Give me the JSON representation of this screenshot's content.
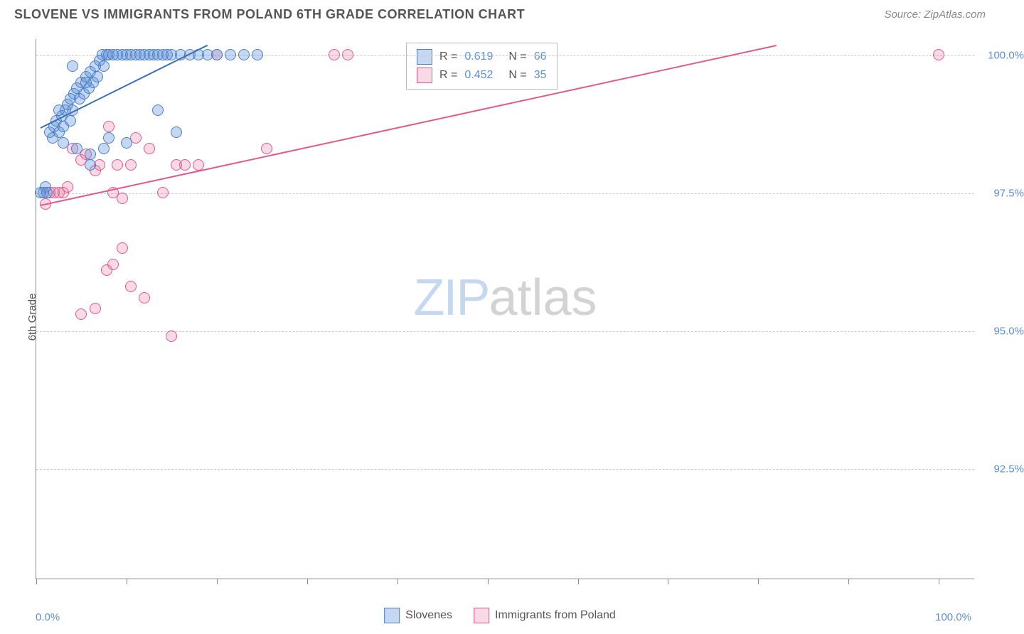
{
  "header": {
    "title": "SLOVENE VS IMMIGRANTS FROM POLAND 6TH GRADE CORRELATION CHART",
    "source": "Source: ZipAtlas.com"
  },
  "yaxis": {
    "title": "6th Grade",
    "min": 90.5,
    "max": 100.3,
    "ticks": [
      {
        "value": 100.0,
        "label": "100.0%"
      },
      {
        "value": 97.5,
        "label": "97.5%"
      },
      {
        "value": 95.0,
        "label": "95.0%"
      },
      {
        "value": 92.5,
        "label": "92.5%"
      }
    ]
  },
  "xaxis": {
    "min": 0.0,
    "max": 104.0,
    "label_left": "0.0%",
    "label_right": "100.0%",
    "tick_positions": [
      0,
      10,
      20,
      30,
      40,
      50,
      60,
      70,
      80,
      90,
      100
    ]
  },
  "series": [
    {
      "name": "Slovenes",
      "color_fill": "rgba(91,143,214,0.35)",
      "color_stroke": "#4a7fc8",
      "R": "0.619",
      "N": "66",
      "trendline": {
        "x1": 0.5,
        "y1": 98.7,
        "x2": 19,
        "y2": 100.2,
        "color": "#3b6fb8"
      },
      "points": [
        [
          0.5,
          97.5
        ],
        [
          0.8,
          97.5
        ],
        [
          1.0,
          97.6
        ],
        [
          1.2,
          97.5
        ],
        [
          1.5,
          98.6
        ],
        [
          1.8,
          98.5
        ],
        [
          2.0,
          98.7
        ],
        [
          2.2,
          98.8
        ],
        [
          2.5,
          98.6
        ],
        [
          2.8,
          98.9
        ],
        [
          3.0,
          98.7
        ],
        [
          3.2,
          99.0
        ],
        [
          3.5,
          99.1
        ],
        [
          3.8,
          99.2
        ],
        [
          4.0,
          99.0
        ],
        [
          4.2,
          99.3
        ],
        [
          4.5,
          99.4
        ],
        [
          4.8,
          99.2
        ],
        [
          5.0,
          99.5
        ],
        [
          5.3,
          99.3
        ],
        [
          5.5,
          99.6
        ],
        [
          5.8,
          99.4
        ],
        [
          6.0,
          99.7
        ],
        [
          6.3,
          99.5
        ],
        [
          6.5,
          99.8
        ],
        [
          6.8,
          99.6
        ],
        [
          7.0,
          99.9
        ],
        [
          7.3,
          100.0
        ],
        [
          7.5,
          99.8
        ],
        [
          7.8,
          100.0
        ],
        [
          8.0,
          100.0
        ],
        [
          8.5,
          100.0
        ],
        [
          9.0,
          100.0
        ],
        [
          9.5,
          100.0
        ],
        [
          10.0,
          100.0
        ],
        [
          10.5,
          100.0
        ],
        [
          11.0,
          100.0
        ],
        [
          11.5,
          100.0
        ],
        [
          12.0,
          100.0
        ],
        [
          12.5,
          100.0
        ],
        [
          13.0,
          100.0
        ],
        [
          13.5,
          100.0
        ],
        [
          14.0,
          100.0
        ],
        [
          14.5,
          100.0
        ],
        [
          15.0,
          100.0
        ],
        [
          16.0,
          100.0
        ],
        [
          17.0,
          100.0
        ],
        [
          18.0,
          100.0
        ],
        [
          19.0,
          100.0
        ],
        [
          20.0,
          100.0
        ],
        [
          21.5,
          100.0
        ],
        [
          23.0,
          100.0
        ],
        [
          24.5,
          100.0
        ],
        [
          3.0,
          98.4
        ],
        [
          4.5,
          98.3
        ],
        [
          6.0,
          98.2
        ],
        [
          7.5,
          98.3
        ],
        [
          8.0,
          98.5
        ],
        [
          4.0,
          99.8
        ],
        [
          5.5,
          99.5
        ],
        [
          2.5,
          99.0
        ],
        [
          3.8,
          98.8
        ],
        [
          6.0,
          98.0
        ],
        [
          10.0,
          98.4
        ],
        [
          13.5,
          99.0
        ],
        [
          15.5,
          98.6
        ]
      ]
    },
    {
      "name": "Immigrants from Poland",
      "color_fill": "rgba(232,120,160,0.28)",
      "color_stroke": "#e15a8a",
      "R": "0.452",
      "N": "35",
      "trendline": {
        "x1": 0.5,
        "y1": 97.3,
        "x2": 82,
        "y2": 100.2,
        "color": "#e15a8a"
      },
      "points": [
        [
          1.0,
          97.3
        ],
        [
          1.5,
          97.5
        ],
        [
          2.0,
          97.5
        ],
        [
          2.5,
          97.5
        ],
        [
          3.0,
          97.5
        ],
        [
          3.5,
          97.6
        ],
        [
          4.0,
          98.3
        ],
        [
          5.0,
          98.1
        ],
        [
          5.5,
          98.2
        ],
        [
          6.5,
          97.9
        ],
        [
          7.0,
          98.0
        ],
        [
          8.0,
          98.7
        ],
        [
          8.5,
          97.5
        ],
        [
          9.0,
          98.0
        ],
        [
          9.5,
          97.4
        ],
        [
          10.5,
          98.0
        ],
        [
          11.0,
          98.5
        ],
        [
          12.5,
          98.3
        ],
        [
          14.0,
          97.5
        ],
        [
          15.5,
          98.0
        ],
        [
          15.0,
          94.9
        ],
        [
          16.5,
          98.0
        ],
        [
          18.0,
          98.0
        ],
        [
          20.0,
          100.0
        ],
        [
          25.5,
          98.3
        ],
        [
          33.0,
          100.0
        ],
        [
          34.5,
          100.0
        ],
        [
          5.0,
          95.3
        ],
        [
          6.5,
          95.4
        ],
        [
          7.8,
          96.1
        ],
        [
          8.5,
          96.2
        ],
        [
          9.5,
          96.5
        ],
        [
          10.5,
          95.8
        ],
        [
          12.0,
          95.6
        ],
        [
          100.0,
          100.0
        ]
      ]
    }
  ],
  "watermark": {
    "zip": "ZIP",
    "atlas": "atlas"
  },
  "colors": {
    "grid": "#cccccc",
    "axis": "#888888",
    "label_blue": "#5b8fd6",
    "label_gray": "#555555"
  }
}
